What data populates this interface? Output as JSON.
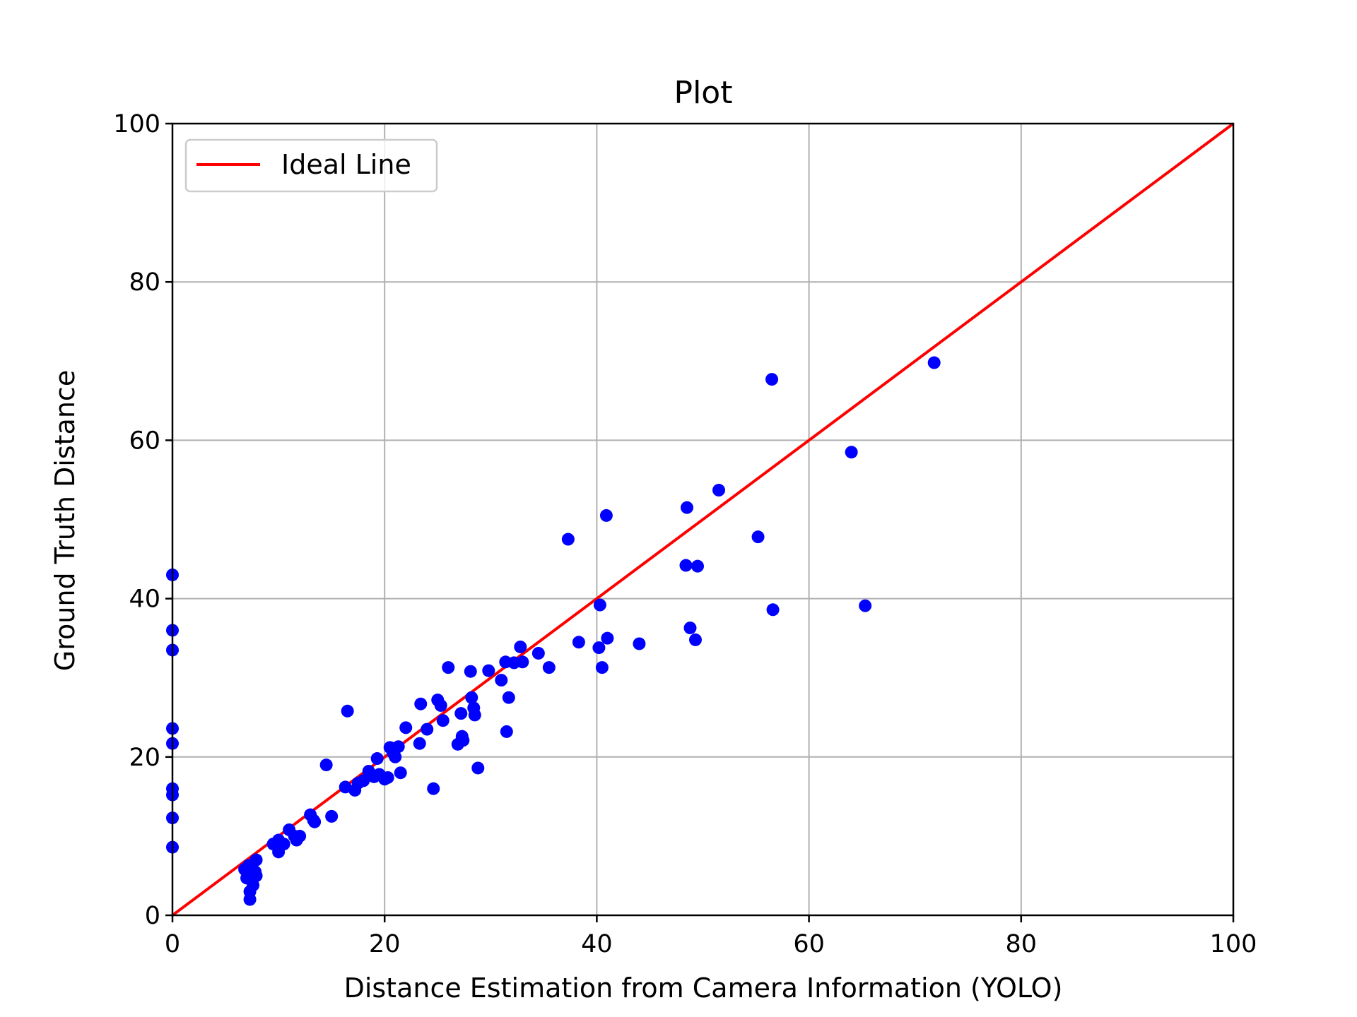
{
  "chart_data": {
    "type": "scatter",
    "title": "Plot",
    "xlabel": "Distance Estimation from Camera Information (YOLO)",
    "ylabel": "Ground Truth Distance",
    "xlim": [
      0,
      100
    ],
    "ylim": [
      0,
      100
    ],
    "x_ticks": [
      0,
      20,
      40,
      60,
      80,
      100
    ],
    "y_ticks": [
      0,
      20,
      40,
      60,
      80,
      100
    ],
    "x_tick_labels": [
      "0",
      "20",
      "40",
      "60",
      "80",
      "100"
    ],
    "y_tick_labels": [
      "0",
      "20",
      "40",
      "60",
      "80",
      "100"
    ],
    "grid": true,
    "legend_position": "top-left",
    "legend": [
      {
        "label": "Ideal Line",
        "color": "#ff0000",
        "marker": "line"
      }
    ],
    "series": [
      {
        "name": "Ideal Line",
        "kind": "line",
        "color": "#ff0000",
        "x": [
          0,
          100
        ],
        "y": [
          0,
          100
        ]
      },
      {
        "kind": "scatter",
        "color": "#0000ff",
        "points": [
          [
            0,
            43
          ],
          [
            0,
            36
          ],
          [
            0,
            33.5
          ],
          [
            0,
            23.6
          ],
          [
            0,
            21.7
          ],
          [
            0,
            16
          ],
          [
            0,
            15.2
          ],
          [
            0,
            12.3
          ],
          [
            0,
            8.6
          ],
          [
            6.8,
            5.8
          ],
          [
            7.0,
            4.7
          ],
          [
            7.2,
            6.3
          ],
          [
            7.3,
            2.0
          ],
          [
            7.3,
            3.0
          ],
          [
            7.5,
            4.5
          ],
          [
            7.6,
            3.8
          ],
          [
            7.8,
            5.5
          ],
          [
            7.9,
            7.0
          ],
          [
            7.9,
            5.0
          ],
          [
            9.5,
            9.0
          ],
          [
            10.0,
            9.5
          ],
          [
            10.0,
            8.0
          ],
          [
            10.5,
            9.0
          ],
          [
            11.0,
            10.8
          ],
          [
            11.5,
            10.0
          ],
          [
            11.7,
            9.5
          ],
          [
            12.0,
            10.0
          ],
          [
            13.0,
            12.7
          ],
          [
            13.3,
            12.0
          ],
          [
            13.4,
            11.8
          ],
          [
            14.5,
            19.0
          ],
          [
            15.0,
            12.5
          ],
          [
            16.3,
            16.2
          ],
          [
            16.5,
            25.8
          ],
          [
            17.2,
            15.8
          ],
          [
            17.5,
            16.7
          ],
          [
            18.0,
            17.0
          ],
          [
            18.5,
            18.2
          ],
          [
            19.0,
            17.5
          ],
          [
            19.3,
            19.8
          ],
          [
            19.5,
            17.8
          ],
          [
            20.0,
            17.2
          ],
          [
            20.3,
            17.4
          ],
          [
            20.5,
            21.2
          ],
          [
            20.8,
            20.5
          ],
          [
            21.0,
            20.0
          ],
          [
            21.3,
            21.3
          ],
          [
            21.5,
            18.0
          ],
          [
            22.0,
            23.7
          ],
          [
            23.3,
            21.7
          ],
          [
            23.4,
            26.7
          ],
          [
            24.0,
            23.5
          ],
          [
            24.6,
            16.0
          ],
          [
            25.0,
            27.2
          ],
          [
            25.3,
            26.5
          ],
          [
            25.5,
            24.6
          ],
          [
            26.0,
            31.3
          ],
          [
            26.9,
            21.6
          ],
          [
            27.2,
            25.5
          ],
          [
            27.3,
            22.6
          ],
          [
            27.4,
            22.1
          ],
          [
            28.1,
            30.8
          ],
          [
            28.2,
            27.5
          ],
          [
            28.5,
            25.3
          ],
          [
            28.4,
            26.2
          ],
          [
            28.8,
            18.6
          ],
          [
            29.8,
            30.9
          ],
          [
            31.0,
            29.7
          ],
          [
            31.4,
            32.0
          ],
          [
            31.5,
            23.2
          ],
          [
            31.7,
            27.5
          ],
          [
            32.2,
            31.9
          ],
          [
            32.8,
            33.9
          ],
          [
            33.0,
            32.0
          ],
          [
            34.5,
            33.1
          ],
          [
            35.5,
            31.3
          ],
          [
            37.3,
            47.5
          ],
          [
            38.3,
            34.5
          ],
          [
            40.2,
            33.8
          ],
          [
            40.3,
            39.2
          ],
          [
            40.5,
            31.3
          ],
          [
            40.9,
            50.5
          ],
          [
            41.0,
            35.0
          ],
          [
            44.0,
            34.3
          ],
          [
            48.4,
            44.2
          ],
          [
            48.5,
            51.5
          ],
          [
            48.8,
            36.3
          ],
          [
            49.3,
            34.8
          ],
          [
            49.5,
            44.1
          ],
          [
            51.5,
            53.7
          ],
          [
            55.2,
            47.8
          ],
          [
            56.5,
            67.7
          ],
          [
            56.6,
            38.6
          ],
          [
            64.0,
            58.5
          ],
          [
            65.3,
            39.1
          ],
          [
            71.8,
            69.8
          ]
        ]
      }
    ]
  }
}
